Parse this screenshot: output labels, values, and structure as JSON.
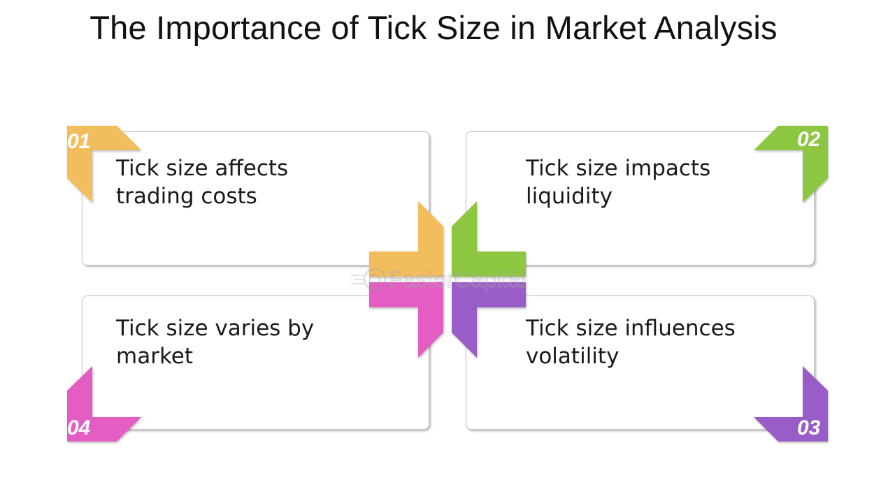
{
  "title": "The Importance of Tick Size in Market Analysis",
  "colors": {
    "orange": "#F2BD5C",
    "green": "#8DC63F",
    "purple": "#9A5BC6",
    "pink": "#E35DC3"
  },
  "watermark": {
    "text": "FasterCapital",
    "icon": "fastercapital-logo-icon"
  },
  "items": [
    {
      "number": "01",
      "text": "Tick size affects\ntrading costs",
      "color": "orange"
    },
    {
      "number": "02",
      "text": "Tick size impacts\nliquidity",
      "color": "green"
    },
    {
      "number": "03",
      "text": "Tick size influences\nvolatility",
      "color": "purple"
    },
    {
      "number": "04",
      "text": "Tick size varies by\nmarket",
      "color": "pink"
    }
  ]
}
